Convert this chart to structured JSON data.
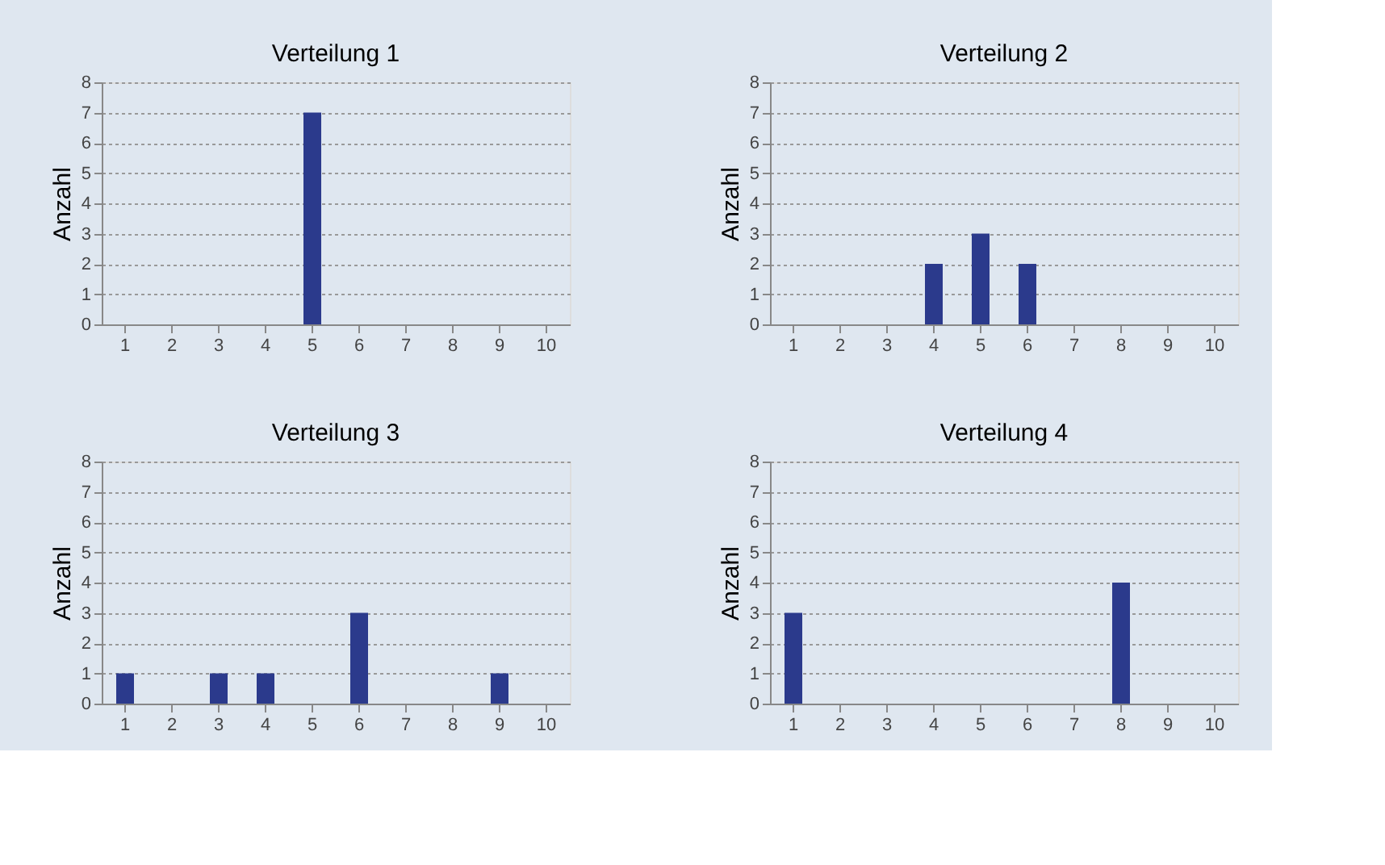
{
  "chart_data": [
    {
      "type": "bar",
      "title": "Verteilung 1",
      "ylabel": "Anzahl",
      "categories": [
        "1",
        "2",
        "3",
        "4",
        "5",
        "6",
        "7",
        "8",
        "9",
        "10"
      ],
      "values": [
        0,
        0,
        0,
        0,
        7,
        0,
        0,
        0,
        0,
        0
      ],
      "color": "#2b3a8c",
      "ylim": [
        0,
        8
      ],
      "yticks": [
        0,
        1,
        2,
        3,
        4,
        5,
        6,
        7,
        8
      ],
      "grid": "y"
    },
    {
      "type": "bar",
      "title": "Verteilung 2",
      "ylabel": "Anzahl",
      "categories": [
        "1",
        "2",
        "3",
        "4",
        "5",
        "6",
        "7",
        "8",
        "9",
        "10"
      ],
      "values": [
        0,
        0,
        0,
        2,
        3,
        2,
        0,
        0,
        0,
        0
      ],
      "color": "#2b3a8c",
      "ylim": [
        0,
        8
      ],
      "yticks": [
        0,
        1,
        2,
        3,
        4,
        5,
        6,
        7,
        8
      ],
      "grid": "y"
    },
    {
      "type": "bar",
      "title": "Verteilung 3",
      "ylabel": "Anzahl",
      "categories": [
        "1",
        "2",
        "3",
        "4",
        "5",
        "6",
        "7",
        "8",
        "9",
        "10"
      ],
      "values": [
        1,
        0,
        1,
        1,
        0,
        3,
        0,
        0,
        1,
        0
      ],
      "color": "#2b3a8c",
      "ylim": [
        0,
        8
      ],
      "yticks": [
        0,
        1,
        2,
        3,
        4,
        5,
        6,
        7,
        8
      ],
      "grid": "y"
    },
    {
      "type": "bar",
      "title": "Verteilung 4",
      "ylabel": "Anzahl",
      "categories": [
        "1",
        "2",
        "3",
        "4",
        "5",
        "6",
        "7",
        "8",
        "9",
        "10"
      ],
      "values": [
        3,
        0,
        0,
        0,
        0,
        0,
        0,
        4,
        0,
        0
      ],
      "color": "#2b3a8c",
      "ylim": [
        0,
        8
      ],
      "yticks": [
        0,
        1,
        2,
        3,
        4,
        5,
        6,
        7,
        8
      ],
      "grid": "y"
    }
  ]
}
